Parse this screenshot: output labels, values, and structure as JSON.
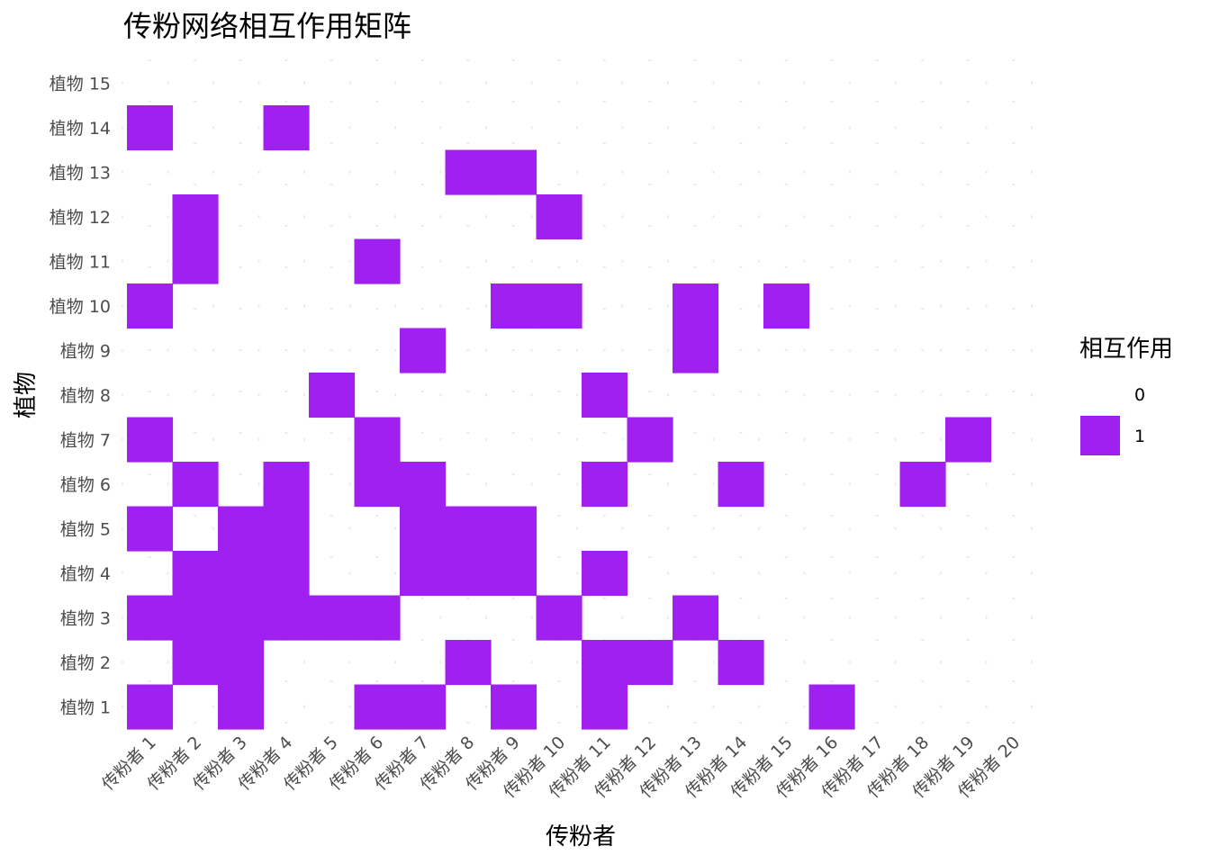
{
  "chart_data": {
    "type": "heatmap",
    "title": "传粉网络相互作用矩阵",
    "xlabel": "传粉者",
    "ylabel": "植物",
    "x_categories": [
      "传粉者 1",
      "传粉者 2",
      "传粉者 3",
      "传粉者 4",
      "传粉者 5",
      "传粉者 6",
      "传粉者 7",
      "传粉者 8",
      "传粉者 9",
      "传粉者 10",
      "传粉者 11",
      "传粉者 12",
      "传粉者 13",
      "传粉者 14",
      "传粉者 15",
      "传粉者 16",
      "传粉者 17",
      "传粉者 18",
      "传粉者 19",
      "传粉者 20"
    ],
    "y_categories": [
      "植物 1",
      "植物 2",
      "植物 3",
      "植物 4",
      "植物 5",
      "植物 6",
      "植物 7",
      "植物 8",
      "植物 9",
      "植物 10",
      "植物 11",
      "植物 12",
      "植物 13",
      "植物 14",
      "植物 15"
    ],
    "matrix": [
      [
        1,
        0,
        1,
        0,
        0,
        1,
        1,
        0,
        1,
        0,
        1,
        0,
        0,
        0,
        0,
        1,
        0,
        0,
        0,
        0
      ],
      [
        0,
        1,
        1,
        0,
        0,
        0,
        0,
        1,
        0,
        0,
        1,
        1,
        0,
        1,
        0,
        0,
        0,
        0,
        0,
        0
      ],
      [
        1,
        1,
        1,
        1,
        1,
        1,
        0,
        0,
        0,
        1,
        0,
        0,
        1,
        0,
        0,
        0,
        0,
        0,
        0,
        0
      ],
      [
        0,
        1,
        1,
        1,
        0,
        0,
        1,
        1,
        1,
        0,
        1,
        0,
        0,
        0,
        0,
        0,
        0,
        0,
        0,
        0
      ],
      [
        1,
        0,
        1,
        1,
        0,
        0,
        1,
        1,
        1,
        0,
        0,
        0,
        0,
        0,
        0,
        0,
        0,
        0,
        0,
        0
      ],
      [
        0,
        1,
        0,
        1,
        0,
        1,
        1,
        0,
        0,
        0,
        1,
        0,
        0,
        1,
        0,
        0,
        0,
        1,
        0,
        0
      ],
      [
        1,
        0,
        0,
        0,
        0,
        1,
        0,
        0,
        0,
        0,
        0,
        1,
        0,
        0,
        0,
        0,
        0,
        0,
        1,
        0
      ],
      [
        0,
        0,
        0,
        0,
        1,
        0,
        0,
        0,
        0,
        0,
        1,
        0,
        0,
        0,
        0,
        0,
        0,
        0,
        0,
        0
      ],
      [
        0,
        0,
        0,
        0,
        0,
        0,
        1,
        0,
        0,
        0,
        0,
        0,
        1,
        0,
        0,
        0,
        0,
        0,
        0,
        0
      ],
      [
        1,
        0,
        0,
        0,
        0,
        0,
        0,
        0,
        1,
        1,
        0,
        0,
        1,
        0,
        1,
        0,
        0,
        0,
        0,
        0
      ],
      [
        0,
        1,
        0,
        0,
        0,
        1,
        0,
        0,
        0,
        0,
        0,
        0,
        0,
        0,
        0,
        0,
        0,
        0,
        0,
        0
      ],
      [
        0,
        1,
        0,
        0,
        0,
        0,
        0,
        0,
        0,
        1,
        0,
        0,
        0,
        0,
        0,
        0,
        0,
        0,
        0,
        0
      ],
      [
        0,
        0,
        0,
        0,
        0,
        0,
        0,
        1,
        1,
        0,
        0,
        0,
        0,
        0,
        0,
        0,
        0,
        0,
        0,
        0
      ],
      [
        1,
        0,
        0,
        1,
        0,
        0,
        0,
        0,
        0,
        0,
        0,
        0,
        0,
        0,
        0,
        0,
        0,
        0,
        0,
        0
      ],
      [
        0,
        0,
        0,
        0,
        0,
        0,
        0,
        0,
        0,
        0,
        0,
        0,
        0,
        0,
        0,
        0,
        0,
        0,
        0,
        0
      ]
    ],
    "legend": {
      "title": "相互作用",
      "entries": [
        {
          "label": "0",
          "value": 0
        },
        {
          "label": "1",
          "value": 1
        }
      ],
      "position": "right"
    },
    "colors": {
      "0": "#ffffff",
      "1": "#a020f0"
    },
    "grid": true
  }
}
